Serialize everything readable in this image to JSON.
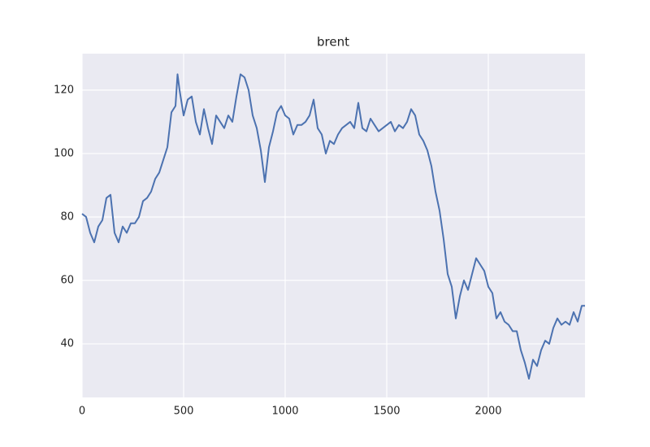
{
  "chart_data": {
    "type": "line",
    "title": "brent",
    "x": [
      0,
      20,
      40,
      60,
      80,
      100,
      120,
      140,
      160,
      180,
      200,
      220,
      240,
      260,
      280,
      300,
      320,
      340,
      360,
      380,
      400,
      420,
      440,
      460,
      470,
      480,
      500,
      520,
      540,
      560,
      580,
      600,
      620,
      640,
      660,
      680,
      700,
      720,
      740,
      760,
      780,
      800,
      820,
      840,
      860,
      880,
      900,
      920,
      940,
      960,
      980,
      1000,
      1020,
      1040,
      1060,
      1080,
      1100,
      1120,
      1140,
      1160,
      1180,
      1200,
      1220,
      1240,
      1260,
      1280,
      1300,
      1320,
      1340,
      1360,
      1380,
      1400,
      1420,
      1440,
      1460,
      1480,
      1500,
      1520,
      1540,
      1560,
      1580,
      1600,
      1620,
      1640,
      1660,
      1680,
      1700,
      1720,
      1740,
      1760,
      1780,
      1800,
      1820,
      1840,
      1860,
      1880,
      1900,
      1920,
      1940,
      1960,
      1980,
      2000,
      2020,
      2040,
      2060,
      2080,
      2100,
      2120,
      2140,
      2160,
      2180,
      2200,
      2220,
      2240,
      2260,
      2280,
      2300,
      2320,
      2340,
      2360,
      2380,
      2400,
      2420,
      2440,
      2460,
      2476
    ],
    "values": [
      81,
      80,
      75,
      72,
      77,
      79,
      86,
      87,
      75,
      72,
      77,
      75,
      78,
      78,
      80,
      85,
      86,
      88,
      92,
      94,
      98,
      102,
      113,
      115,
      125,
      120,
      112,
      117,
      118,
      110,
      106,
      114,
      108,
      103,
      112,
      110,
      108,
      112,
      110,
      118,
      125,
      124,
      120,
      112,
      108,
      101,
      91,
      102,
      107,
      113,
      115,
      112,
      111,
      106,
      109,
      109,
      110,
      112,
      117,
      108,
      106,
      100,
      104,
      103,
      106,
      108,
      109,
      110,
      108,
      116,
      108,
      107,
      111,
      109,
      107,
      108,
      109,
      110,
      107,
      109,
      108,
      110,
      114,
      112,
      106,
      104,
      101,
      96,
      88,
      82,
      73,
      62,
      58,
      48,
      55,
      60,
      57,
      62,
      67,
      65,
      63,
      58,
      56,
      48,
      50,
      47,
      46,
      44,
      44,
      38,
      34,
      29,
      35,
      33,
      38,
      41,
      40,
      45,
      48,
      46,
      47,
      46,
      50,
      47,
      52,
      52
    ],
    "color": "#4c72b0",
    "xlim": [
      0,
      2476
    ],
    "ylim": [
      23.1,
      131.5
    ],
    "xticks": [
      0,
      500,
      1000,
      1500,
      2000
    ],
    "yticks": [
      40,
      60,
      80,
      100,
      120
    ],
    "grid": true
  }
}
